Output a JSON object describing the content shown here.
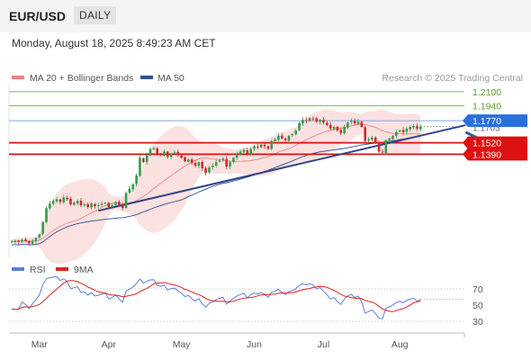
{
  "header": {
    "pair": "EUR/USD",
    "timeframe": "DAILY"
  },
  "datetime": "Monday, August 18, 2025 8:49:23 AM CET",
  "legend": {
    "ma20_bb": "MA 20 + Bollinger Bands",
    "ma50": "MA 50",
    "ma20_color": "#f08080",
    "ma50_color": "#2f4f8f"
  },
  "copyright": "Research © 2025 Trading Central",
  "rsi_legend": {
    "rsi": "RSI",
    "ma9": "9MA",
    "rsi_color": "#5b7fd9",
    "ma9_color": "#dd2222"
  },
  "chart_data": [
    {
      "type": "candlestick",
      "x_labels": [
        "Mar",
        "Apr",
        "May",
        "Jun",
        "Jul",
        "Aug"
      ],
      "y_range": [
        1.022,
        1.218
      ],
      "levels": [
        {
          "value": 1.21,
          "label": "1.2100",
          "style": "resistance-green"
        },
        {
          "value": 1.194,
          "label": "1.1940",
          "style": "resistance-green"
        },
        {
          "value": 1.177,
          "label": "1.1770",
          "style": "pivot"
        },
        {
          "value": 1.152,
          "label": "1.1520",
          "style": "support-red"
        },
        {
          "value": 1.139,
          "label": "1.1390",
          "style": "support-red"
        }
      ],
      "last_price": {
        "value": 1.1703,
        "label": "1.1703"
      },
      "trendline_start": {
        "day": 0,
        "price": 1.052
      },
      "trendline_end": {
        "day": 131,
        "price": 1.172
      },
      "forecast_arrow": {
        "from": {
          "day": 131,
          "price": 1.164
        },
        "to": {
          "day": 143,
          "price": 1.138
        }
      },
      "open": 1.04,
      "closes": [
        1.04,
        1.041,
        1.0395,
        1.042,
        1.0405,
        1.038,
        1.041,
        1.044,
        1.048,
        1.062,
        1.078,
        1.083,
        1.086,
        1.088,
        1.085,
        1.09,
        1.088,
        1.082,
        1.084,
        1.086,
        1.081,
        1.082,
        1.079,
        1.083,
        1.08,
        1.081,
        1.083,
        1.084,
        1.079,
        1.081,
        1.085,
        1.081,
        1.078,
        1.095,
        1.1,
        1.105,
        1.115,
        1.135,
        1.13,
        1.138,
        1.145,
        1.146,
        1.139,
        1.138,
        1.142,
        1.136,
        1.14,
        1.141,
        1.138,
        1.135,
        1.131,
        1.133,
        1.129,
        1.126,
        1.13,
        1.123,
        1.118,
        1.124,
        1.126,
        1.13,
        1.132,
        1.134,
        1.125,
        1.13,
        1.135,
        1.139,
        1.142,
        1.144,
        1.139,
        1.145,
        1.148,
        1.147,
        1.15,
        1.148,
        1.145,
        1.154,
        1.156,
        1.16,
        1.157,
        1.155,
        1.16,
        1.162,
        1.166,
        1.174,
        1.178,
        1.177,
        1.18,
        1.179,
        1.176,
        1.178,
        1.175,
        1.172,
        1.168,
        1.17,
        1.166,
        1.163,
        1.17,
        1.175,
        1.177,
        1.174,
        1.176,
        1.17,
        1.154,
        1.156,
        1.158,
        1.152,
        1.142,
        1.141,
        1.155,
        1.157,
        1.16,
        1.164,
        1.166,
        1.164,
        1.168,
        1.17,
        1.171,
        1.168,
        1.1703
      ]
    },
    {
      "type": "line",
      "name": "RSI",
      "y_ticks": [
        70,
        50,
        30
      ],
      "y_range": [
        20,
        80
      ],
      "series": [
        {
          "name": "RSI",
          "color": "#5b7fd9"
        },
        {
          "name": "9MA",
          "color": "#dd2222"
        }
      ]
    }
  ]
}
